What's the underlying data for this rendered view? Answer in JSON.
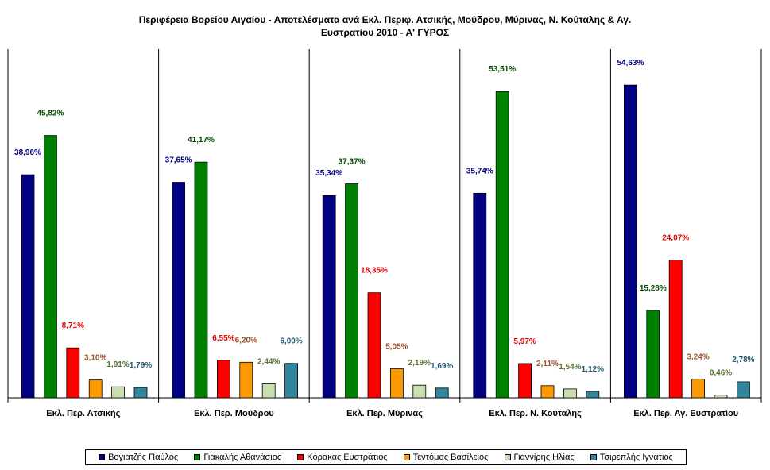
{
  "chart_data": {
    "type": "bar",
    "title_lines": [
      "Περιφέρεια Βορείου Αιγαίου - Αποτελέσματα ανά Εκλ. Περιφ. Ατσικής, Μούδρου, Μύρινας, Ν. Κούταλης & Αγ.",
      "Ευστρατίου 2010 - Α' ΓΥΡΟΣ"
    ],
    "categories": [
      "Εκλ. Περ. Ατσικής",
      "Εκλ. Περ. Μούδρου",
      "Εκλ. Περ. Μύρινας",
      "Εκλ. Περ. Ν. Κούταλης",
      "Εκλ. Περ. Αγ. Ευστρατίου"
    ],
    "ylim": [
      0,
      60
    ],
    "grid": false,
    "legend_position": "bottom",
    "series": [
      {
        "name": "Βογιατζής Παύλος",
        "color": "#000080",
        "label_color": "#000080",
        "values": [
          38.96,
          37.65,
          35.34,
          35.74,
          54.63
        ],
        "labels": [
          "38,96%",
          "37,65%",
          "35,34%",
          "35,74%",
          "54,63%"
        ]
      },
      {
        "name": "Γιακαλής Αθανάσιος",
        "color": "#008000",
        "label_color": "#004d00",
        "values": [
          45.82,
          41.17,
          37.37,
          53.51,
          15.28
        ],
        "labels": [
          "45,82%",
          "41,17%",
          "37,37%",
          "53,51%",
          "15,28%"
        ]
      },
      {
        "name": "Κόρακας Ευστράτιος",
        "color": "#ff0000",
        "label_color": "#e00000",
        "values": [
          8.71,
          6.55,
          18.35,
          5.97,
          24.07
        ],
        "labels": [
          "8,71%",
          "6,55%",
          "18,35%",
          "5,97%",
          "24,07%"
        ]
      },
      {
        "name": "Τεντόμας Βασίλειος",
        "color": "#ff9900",
        "label_color": "#a0522d",
        "values": [
          3.1,
          6.2,
          5.05,
          2.11,
          3.24
        ],
        "labels": [
          "3,10%",
          "6,20%",
          "5,05%",
          "2,11%",
          "3,24%"
        ]
      },
      {
        "name": "Γιαννίρης Ηλίας",
        "color": "#c8e0b0",
        "label_color": "#557030",
        "values": [
          1.91,
          2.44,
          2.19,
          1.54,
          0.46
        ],
        "labels": [
          "1,91%",
          "2,44%",
          "2,19%",
          "1,54%",
          "0,46%"
        ]
      },
      {
        "name": "Τσιρεπλής Ιγνάτιος",
        "color": "#31859c",
        "label_color": "#215a70",
        "values": [
          1.79,
          6.0,
          1.69,
          1.12,
          2.78
        ],
        "labels": [
          "1,79%",
          "6,00%",
          "1,69%",
          "1,12%",
          "2,78%"
        ]
      }
    ]
  }
}
